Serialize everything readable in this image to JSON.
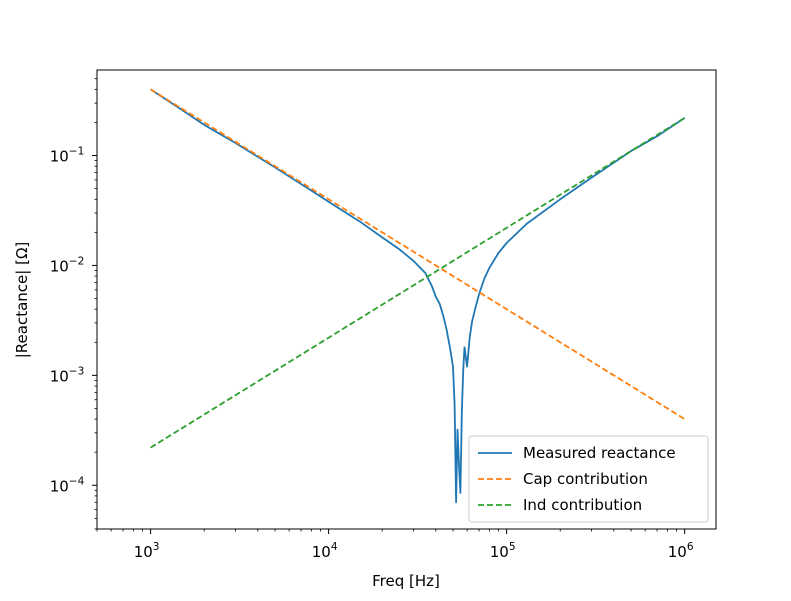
{
  "chart_data": {
    "type": "line",
    "title": "",
    "xlabel": "Freq [Hz]",
    "ylabel": "|Reactance| [Ω]",
    "xscale": "log",
    "yscale": "log",
    "xlim": [
      500,
      1500000
    ],
    "ylim": [
      4e-05,
      0.6
    ],
    "grid": false,
    "legend_position": "lower-right",
    "x_ticks": [
      {
        "base": "10",
        "exp": "3",
        "value": 1000
      },
      {
        "base": "10",
        "exp": "4",
        "value": 10000
      },
      {
        "base": "10",
        "exp": "5",
        "value": 100000
      },
      {
        "base": "10",
        "exp": "6",
        "value": 1000000
      }
    ],
    "y_ticks": [
      {
        "base": "10",
        "exp": "−4",
        "value": 0.0001
      },
      {
        "base": "10",
        "exp": "−3",
        "value": 0.001
      },
      {
        "base": "10",
        "exp": "−2",
        "value": 0.01
      },
      {
        "base": "10",
        "exp": "−1",
        "value": 0.1
      }
    ],
    "series": [
      {
        "name": "Measured reactance",
        "color": "#1f77b4",
        "style": "solid",
        "x": [
          1000,
          1500,
          2000,
          3000,
          5000,
          8000,
          10000,
          15000,
          20000,
          25000,
          30000,
          35000,
          38000,
          40000,
          42000,
          44000,
          46000,
          48000,
          50000,
          51000,
          52000,
          53000,
          54000,
          55000,
          56000,
          57000,
          58000,
          60000,
          62000,
          64000,
          67000,
          70000,
          75000,
          80000,
          90000,
          100000,
          130000,
          200000,
          300000,
          500000,
          700000,
          1000000
        ],
        "y": [
          0.4,
          0.26,
          0.19,
          0.13,
          0.078,
          0.048,
          0.038,
          0.025,
          0.018,
          0.014,
          0.011,
          0.0085,
          0.0065,
          0.0052,
          0.0045,
          0.0035,
          0.0026,
          0.0018,
          0.0012,
          0.00055,
          7e-05,
          0.00032,
          0.00015,
          8.5e-05,
          0.00045,
          0.0011,
          0.0018,
          0.0012,
          0.0022,
          0.0031,
          0.0042,
          0.0055,
          0.0076,
          0.0095,
          0.013,
          0.016,
          0.024,
          0.04,
          0.063,
          0.11,
          0.15,
          0.22
        ]
      },
      {
        "name": "Cap contribution",
        "color": "#ff7f0e",
        "style": "dashed",
        "x": [
          1000,
          1000000
        ],
        "y": [
          0.4,
          0.0004
        ]
      },
      {
        "name": "Ind contribution",
        "color": "#2ca02c",
        "style": "dashed",
        "x": [
          1000,
          1000000
        ],
        "y": [
          0.00022,
          0.22
        ]
      }
    ]
  }
}
